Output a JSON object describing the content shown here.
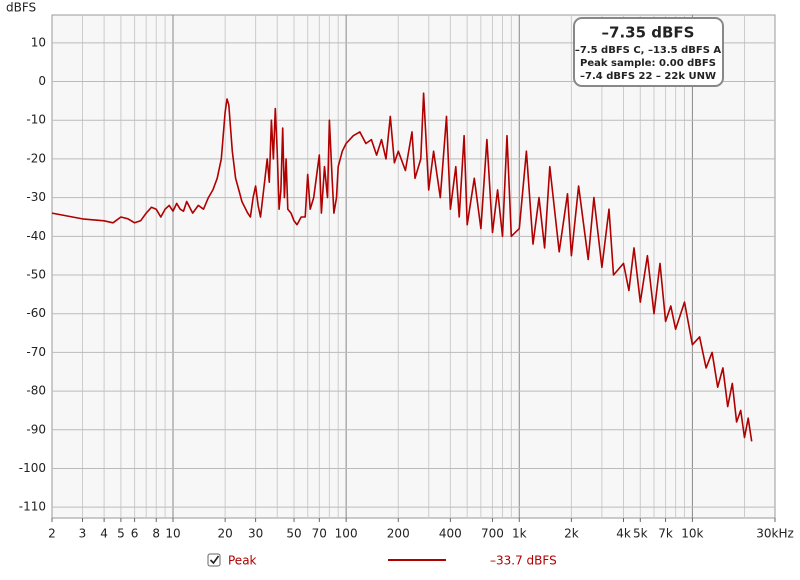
{
  "chart_data": {
    "type": "line",
    "y_label": "dBFS",
    "log_x": true,
    "minor_grid": true,
    "grid": true,
    "xlim": [
      2,
      30000
    ],
    "ylim": [
      -112.8,
      17.2
    ],
    "xticks": [
      2,
      3,
      4,
      5,
      6,
      8,
      10,
      20,
      30,
      50,
      70,
      100,
      200,
      400,
      700,
      {
        "value": 1000,
        "label": "1k"
      },
      {
        "value": 2000,
        "label": "2k"
      },
      {
        "value": 4000,
        "label": "4k"
      },
      {
        "value": 5000,
        "label": "5k"
      },
      {
        "value": 7000,
        "label": "7k"
      },
      {
        "value": 10000,
        "label": "10k"
      },
      {
        "value": 30000,
        "label": "30kHz"
      }
    ],
    "yticks": [
      -110,
      -100,
      -90,
      -80,
      -70,
      -60,
      -50,
      -40,
      -30,
      -20,
      -10,
      0,
      10
    ],
    "annotations": [
      "–7.35 dBFS",
      "–7.5 dBFS C, –13.5 dBFS A",
      "Peak sample: 0.00 dBFS",
      "–7.4 dBFS 22 – 22k UNW"
    ],
    "legend_value": "–33.7 dBFS",
    "x": [
      2,
      3,
      4,
      4.5,
      5,
      5.5,
      6,
      6.5,
      7,
      7.5,
      8,
      8.5,
      9,
      9.5,
      10,
      10.5,
      11,
      11.5,
      12,
      13,
      14,
      15,
      16,
      17,
      18,
      19,
      20,
      20.5,
      21,
      22,
      23,
      24,
      25,
      27,
      28,
      29,
      30,
      31,
      32,
      34,
      35,
      36,
      37,
      38,
      39,
      40,
      41,
      42,
      43,
      44,
      45,
      46,
      48,
      50,
      52,
      55,
      58,
      60,
      62,
      65,
      70,
      72,
      75,
      78,
      80,
      83,
      85,
      88,
      90,
      95,
      100,
      110,
      120,
      130,
      140,
      150,
      160,
      170,
      180,
      190,
      200,
      220,
      240,
      250,
      270,
      280,
      300,
      320,
      350,
      380,
      400,
      430,
      450,
      480,
      500,
      550,
      600,
      650,
      700,
      750,
      800,
      850,
      900,
      1000,
      1100,
      1200,
      1300,
      1400,
      1500,
      1700,
      1900,
      2000,
      2200,
      2500,
      2700,
      3000,
      3300,
      3500,
      4000,
      4300,
      4600,
      5000,
      5500,
      6000,
      6500,
      7000,
      7500,
      8000,
      9000,
      10000,
      11000,
      12000,
      13000,
      14000,
      15000,
      16000,
      17000,
      18000,
      19000,
      20000,
      21000,
      22000
    ],
    "series": [
      {
        "name": "Peak",
        "color": "#b00000",
        "values": [
          -34,
          -35.5,
          -36,
          -36.5,
          -35,
          -35.5,
          -36.5,
          -36,
          -34,
          -32.5,
          -33,
          -35,
          -33,
          -32,
          -33.5,
          -31.5,
          -33,
          -33.5,
          -31,
          -34,
          -32,
          -33,
          -30,
          -28,
          -25,
          -20,
          -8,
          -4.5,
          -6,
          -18,
          -25,
          -28,
          -31,
          -34,
          -35,
          -30,
          -27,
          -32,
          -35,
          -25,
          -20,
          -26,
          -10,
          -20,
          -7,
          -18,
          -33,
          -28,
          -12,
          -30,
          -20,
          -33,
          -34,
          -36,
          -37,
          -35,
          -35,
          -24,
          -33,
          -30,
          -19,
          -34,
          -22,
          -30,
          -10,
          -25,
          -34,
          -30,
          -22,
          -18,
          -16,
          -14,
          -13,
          -16,
          -15,
          -19,
          -15,
          -20,
          -9,
          -21,
          -18,
          -23,
          -13,
          -25,
          -20,
          -3,
          -28,
          -18,
          -30,
          -9,
          -33,
          -22,
          -35,
          -14,
          -37,
          -25,
          -38,
          -15,
          -39,
          -28,
          -40,
          -14,
          -40,
          -38,
          -18,
          -42,
          -30,
          -43,
          -22,
          -44,
          -29,
          -45,
          -27,
          -46,
          -30,
          -48,
          -33,
          -50,
          -47,
          -54,
          -43,
          -57,
          -45,
          -60,
          -47,
          -62,
          -58,
          -64,
          -57,
          -68,
          -66,
          -74,
          -70,
          -79,
          -74,
          -84,
          -78,
          -88,
          -85,
          -92,
          -87,
          -93
        ]
      }
    ]
  }
}
